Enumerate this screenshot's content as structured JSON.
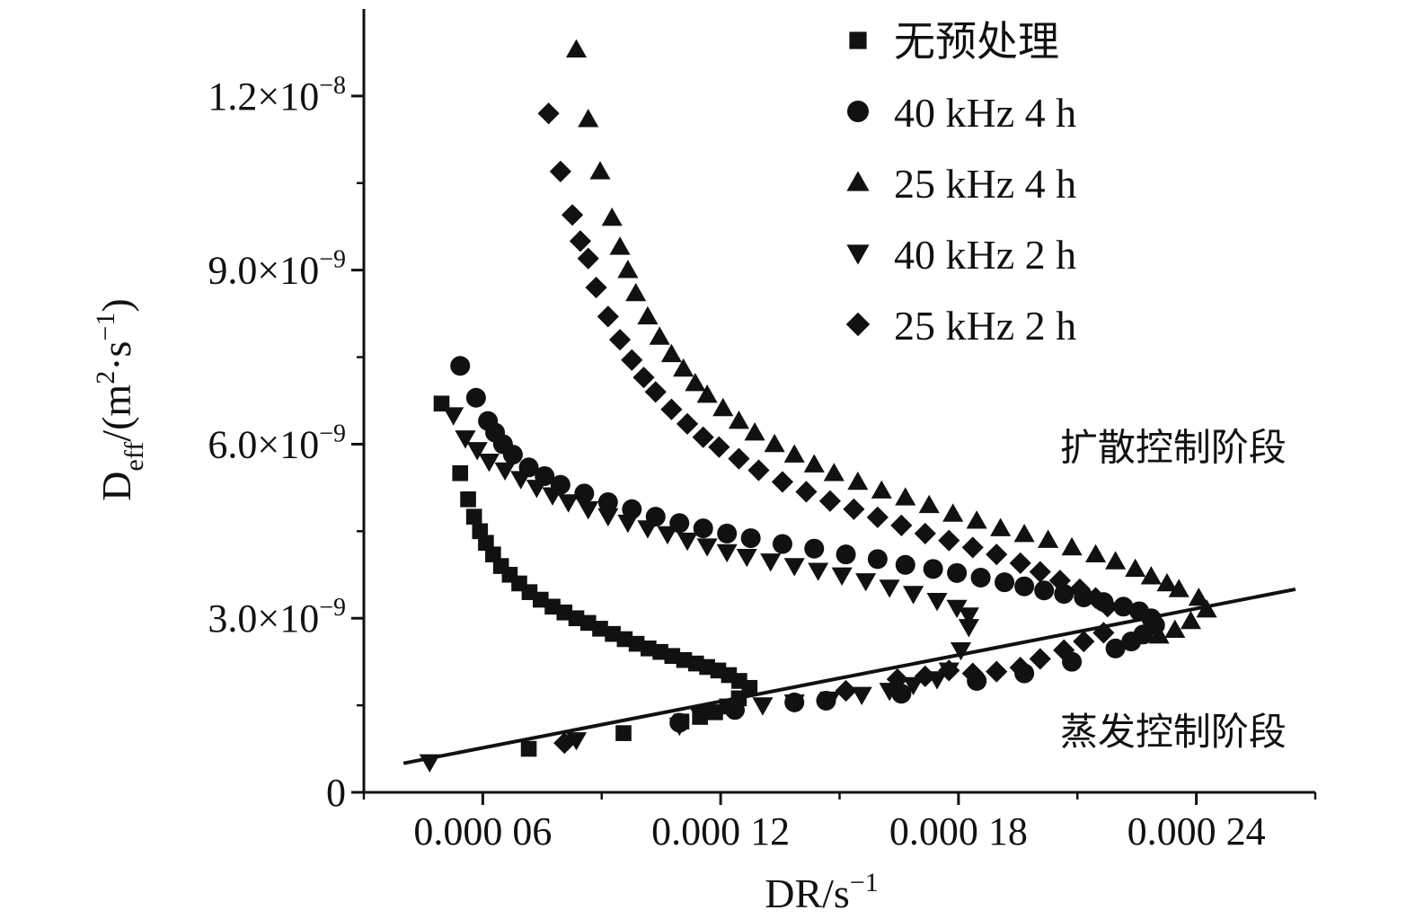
{
  "chart_data": {
    "type": "scatter",
    "xlabel": {
      "base": "DR/s",
      "sup": "−1"
    },
    "ylabel": {
      "base": "D",
      "sub": "eff",
      "mid": "/(m",
      "sup1": "2",
      "dot": "·s",
      "sup2": "−1",
      "end": ")"
    },
    "xlim": [
      3e-05,
      0.00027
    ],
    "ylim": [
      0,
      1.35e-08
    ],
    "x_ticks": [
      {
        "value": 6e-05,
        "label": "0.000 06"
      },
      {
        "value": 0.00012,
        "label": "0.000 12"
      },
      {
        "value": 0.00018,
        "label": "0.000 18"
      },
      {
        "value": 0.00024,
        "label": "0.000 24"
      }
    ],
    "x_minor_ticks": [
      3e-05,
      9e-05,
      0.00015,
      0.00021,
      0.00027
    ],
    "y_ticks": [
      {
        "value": 0,
        "label": "0"
      },
      {
        "value": 3e-09,
        "base": "3.0×10",
        "exp": "−9"
      },
      {
        "value": 6e-09,
        "base": "6.0×10",
        "exp": "−9"
      },
      {
        "value": 9e-09,
        "base": "9.0×10",
        "exp": "−9"
      },
      {
        "value": 1.2e-08,
        "base": "1.2×10",
        "exp": "−8"
      }
    ],
    "y_minor_ticks": [
      1.5e-09,
      4.5e-09,
      7.5e-09,
      1.05e-08
    ],
    "grid": false,
    "legend_position": "top-right",
    "series": [
      {
        "name": "无预处理",
        "marker": "square",
        "points": [
          [
            4.96e-05,
            6.7e-09
          ],
          [
            5.43e-05,
            5.5e-09
          ],
          [
            5.63e-05,
            5.05e-09
          ],
          [
            5.78e-05,
            4.75e-09
          ],
          [
            5.93e-05,
            4.5e-09
          ],
          [
            6.08e-05,
            4.3e-09
          ],
          [
            6.26e-05,
            4.1e-09
          ],
          [
            6.46e-05,
            3.9e-09
          ],
          [
            6.68e-05,
            3.75e-09
          ],
          [
            6.92e-05,
            3.6e-09
          ],
          [
            7.18e-05,
            3.45e-09
          ],
          [
            7.46e-05,
            3.32e-09
          ],
          [
            7.76e-05,
            3.2e-09
          ],
          [
            8.06e-05,
            3.1e-09
          ],
          [
            8.36e-05,
            3e-09
          ],
          [
            8.66e-05,
            2.92e-09
          ],
          [
            8.96e-05,
            2.82e-09
          ],
          [
            9.28e-05,
            2.73e-09
          ],
          [
            9.58e-05,
            2.64e-09
          ],
          [
            9.88e-05,
            2.56e-09
          ],
          [
            0.0001018,
            2.48e-09
          ],
          [
            0.0001048,
            2.42e-09
          ],
          [
            0.0001078,
            2.35e-09
          ],
          [
            0.0001108,
            2.28e-09
          ],
          [
            0.0001138,
            2.22e-09
          ],
          [
            0.0001166,
            2.16e-09
          ],
          [
            0.0001194,
            2.1e-09
          ],
          [
            0.0001221,
            2.02e-09
          ],
          [
            0.0001247,
            1.92e-09
          ],
          [
            0.0001273,
            1.8e-09
          ],
          [
            0.0001246,
            1.62e-09
          ],
          [
            0.0001216,
            1.48e-09
          ],
          [
            0.0001186,
            1.38e-09
          ],
          [
            0.0001148,
            1.3e-09
          ],
          [
            0.0001101,
            1.22e-09
          ],
          [
            9.55e-05,
            1.02e-09
          ],
          [
            7.16e-05,
            7.5e-10
          ]
        ]
      },
      {
        "name": "40 kHz 4 h",
        "marker": "circle",
        "points": [
          [
            5.43e-05,
            7.35e-09
          ],
          [
            5.83e-05,
            6.8e-09
          ],
          [
            6.13e-05,
            6.4e-09
          ],
          [
            6.31e-05,
            6.2e-09
          ],
          [
            6.51e-05,
            6e-09
          ],
          [
            6.76e-05,
            5.82e-09
          ],
          [
            7.16e-05,
            5.6e-09
          ],
          [
            7.56e-05,
            5.45e-09
          ],
          [
            7.96e-05,
            5.3e-09
          ],
          [
            8.56e-05,
            5.15e-09
          ],
          [
            9.16e-05,
            5e-09
          ],
          [
            9.76e-05,
            4.88e-09
          ],
          [
            0.0001036,
            4.75e-09
          ],
          [
            0.0001096,
            4.64e-09
          ],
          [
            0.0001156,
            4.55e-09
          ],
          [
            0.0001216,
            4.46e-09
          ],
          [
            0.0001276,
            4.38e-09
          ],
          [
            0.0001356,
            4.28e-09
          ],
          [
            0.0001436,
            4.2e-09
          ],
          [
            0.0001516,
            4.1e-09
          ],
          [
            0.0001596,
            4.02e-09
          ],
          [
            0.0001666,
            3.92e-09
          ],
          [
            0.0001736,
            3.85e-09
          ],
          [
            0.0001796,
            3.78e-09
          ],
          [
            0.0001856,
            3.7e-09
          ],
          [
            0.0001916,
            3.62e-09
          ],
          [
            0.0001966,
            3.55e-09
          ],
          [
            0.0002016,
            3.48e-09
          ],
          [
            0.0002066,
            3.42e-09
          ],
          [
            0.0002116,
            3.36e-09
          ],
          [
            0.0002166,
            3.28e-09
          ],
          [
            0.0002216,
            3.2e-09
          ],
          [
            0.0002256,
            3.12e-09
          ],
          [
            0.0002286,
            3e-09
          ],
          [
            0.0002296,
            2.88e-09
          ],
          [
            0.0002266,
            2.72e-09
          ],
          [
            0.0002236,
            2.6e-09
          ],
          [
            0.0002196,
            2.48e-09
          ],
          [
            0.0002086,
            2.25e-09
          ],
          [
            0.0001966,
            2.05e-09
          ],
          [
            0.0001846,
            1.92e-09
          ],
          [
            0.0001656,
            1.7e-09
          ],
          [
            0.0001466,
            1.58e-09
          ],
          [
            0.0001386,
            1.55e-09
          ],
          [
            0.0001236,
            1.42e-09
          ],
          [
            0.0001096,
            1.2e-09
          ]
        ]
      },
      {
        "name": "25 kHz 4 h",
        "marker": "triangle-up",
        "points": [
          [
            8.36e-05,
            1.28e-08
          ],
          [
            8.66e-05,
            1.16e-08
          ],
          [
            8.96e-05,
            1.07e-08
          ],
          [
            9.26e-05,
            9.9e-09
          ],
          [
            9.46e-05,
            9.4e-09
          ],
          [
            9.66e-05,
            9e-09
          ],
          [
            9.86e-05,
            8.6e-09
          ],
          [
            0.0001016,
            8.2e-09
          ],
          [
            0.0001046,
            7.85e-09
          ],
          [
            0.0001076,
            7.55e-09
          ],
          [
            0.0001106,
            7.3e-09
          ],
          [
            0.0001136,
            7.05e-09
          ],
          [
            0.0001166,
            6.85e-09
          ],
          [
            0.0001206,
            6.62e-09
          ],
          [
            0.0001246,
            6.4e-09
          ],
          [
            0.0001286,
            6.2e-09
          ],
          [
            0.0001336,
            6e-09
          ],
          [
            0.0001386,
            5.82e-09
          ],
          [
            0.0001436,
            5.65e-09
          ],
          [
            0.0001486,
            5.5e-09
          ],
          [
            0.0001546,
            5.35e-09
          ],
          [
            0.0001606,
            5.2e-09
          ],
          [
            0.0001666,
            5.08e-09
          ],
          [
            0.0001726,
            4.95e-09
          ],
          [
            0.0001786,
            4.8e-09
          ],
          [
            0.0001846,
            4.68e-09
          ],
          [
            0.0001906,
            4.55e-09
          ],
          [
            0.0001966,
            4.45e-09
          ],
          [
            0.0002026,
            4.35e-09
          ],
          [
            0.0002086,
            4.22e-09
          ],
          [
            0.0002146,
            4.1e-09
          ],
          [
            0.0002196,
            3.98e-09
          ],
          [
            0.0002246,
            3.85e-09
          ],
          [
            0.0002286,
            3.72e-09
          ],
          [
            0.0002326,
            3.6e-09
          ],
          [
            0.0002356,
            3.5e-09
          ],
          [
            0.0002406,
            3.35e-09
          ],
          [
            0.0002426,
            3.15e-09
          ],
          [
            0.0002386,
            2.95e-09
          ],
          [
            0.0002346,
            2.8e-09
          ],
          [
            0.0002306,
            2.7e-09
          ]
        ]
      },
      {
        "name": "40 kHz 2 h",
        "marker": "triangle-down",
        "points": [
          [
            5.26e-05,
            6.5e-09
          ],
          [
            5.56e-05,
            6.1e-09
          ],
          [
            5.86e-05,
            5.9e-09
          ],
          [
            6.16e-05,
            5.7e-09
          ],
          [
            6.56e-05,
            5.55e-09
          ],
          [
            6.96e-05,
            5.4e-09
          ],
          [
            7.36e-05,
            5.25e-09
          ],
          [
            7.76e-05,
            5.12e-09
          ],
          [
            8.16e-05,
            5e-09
          ],
          [
            8.66e-05,
            4.88e-09
          ],
          [
            9.16e-05,
            4.76e-09
          ],
          [
            9.66e-05,
            4.65e-09
          ],
          [
            0.0001016,
            4.55e-09
          ],
          [
            0.0001066,
            4.45e-09
          ],
          [
            0.0001116,
            4.34e-09
          ],
          [
            0.0001166,
            4.24e-09
          ],
          [
            0.0001216,
            4.14e-09
          ],
          [
            0.0001266,
            4.06e-09
          ],
          [
            0.0001326,
            3.98e-09
          ],
          [
            0.0001386,
            3.9e-09
          ],
          [
            0.0001446,
            3.82e-09
          ],
          [
            0.0001506,
            3.74e-09
          ],
          [
            0.0001566,
            3.64e-09
          ],
          [
            0.0001626,
            3.53e-09
          ],
          [
            0.0001686,
            3.42e-09
          ],
          [
            0.0001746,
            3.3e-09
          ],
          [
            0.0001796,
            3.18e-09
          ],
          [
            0.0001826,
            3.05e-09
          ],
          [
            0.0001826,
            2.85e-09
          ],
          [
            0.0001806,
            2.45e-09
          ],
          [
            0.0001776,
            2.1e-09
          ],
          [
            0.0001746,
            1.95e-09
          ],
          [
            0.0001686,
            1.85e-09
          ],
          [
            0.0001626,
            1.75e-09
          ],
          [
            0.0001556,
            1.68e-09
          ],
          [
            0.0001476,
            1.6e-09
          ],
          [
            0.0001386,
            1.55e-09
          ],
          [
            0.0001306,
            1.5e-09
          ],
          [
            0.0001226,
            1.45e-09
          ],
          [
            0.0001146,
            1.35e-09
          ],
          [
            0.0001096,
            1.15e-09
          ],
          [
            8.36e-05,
            9e-10
          ],
          [
            4.66e-05,
            5.2e-10
          ]
        ]
      },
      {
        "name": "25 kHz 2 h",
        "marker": "diamond",
        "points": [
          [
            7.66e-05,
            1.17e-08
          ],
          [
            7.96e-05,
            1.07e-08
          ],
          [
            8.26e-05,
            9.95e-09
          ],
          [
            8.46e-05,
            9.5e-09
          ],
          [
            8.66e-05,
            9.2e-09
          ],
          [
            8.86e-05,
            8.7e-09
          ],
          [
            9.16e-05,
            8.2e-09
          ],
          [
            9.46e-05,
            7.8e-09
          ],
          [
            9.76e-05,
            7.45e-09
          ],
          [
            0.0001006,
            7.15e-09
          ],
          [
            0.0001036,
            6.9e-09
          ],
          [
            0.0001076,
            6.6e-09
          ],
          [
            0.0001116,
            6.35e-09
          ],
          [
            0.0001156,
            6.12e-09
          ],
          [
            0.0001196,
            5.95e-09
          ],
          [
            0.0001246,
            5.75e-09
          ],
          [
            0.0001296,
            5.55e-09
          ],
          [
            0.0001356,
            5.35e-09
          ],
          [
            0.0001416,
            5.18e-09
          ],
          [
            0.0001476,
            5.02e-09
          ],
          [
            0.0001536,
            4.88e-09
          ],
          [
            0.0001596,
            4.74e-09
          ],
          [
            0.0001656,
            4.6e-09
          ],
          [
            0.0001716,
            4.46e-09
          ],
          [
            0.0001776,
            4.34e-09
          ],
          [
            0.0001836,
            4.22e-09
          ],
          [
            0.0001896,
            4.1e-09
          ],
          [
            0.0001956,
            3.95e-09
          ],
          [
            0.0002006,
            3.8e-09
          ],
          [
            0.0002056,
            3.65e-09
          ],
          [
            0.0002106,
            3.5e-09
          ],
          [
            0.0002146,
            3.35e-09
          ],
          [
            0.0002176,
            3.2e-09
          ],
          [
            0.0002166,
            2.75e-09
          ],
          [
            0.0002116,
            2.6e-09
          ],
          [
            0.0002066,
            2.45e-09
          ],
          [
            0.0002006,
            2.3e-09
          ],
          [
            0.0001956,
            2.15e-09
          ],
          [
            0.0001896,
            2.08e-09
          ],
          [
            0.0001836,
            2.05e-09
          ],
          [
            0.0001776,
            2.1e-09
          ],
          [
            0.0001716,
            2e-09
          ],
          [
            0.0001646,
            1.95e-09
          ],
          [
            0.0001516,
            1.75e-09
          ],
          [
            0.0001226,
            1.45e-09
          ],
          [
            8.06e-05,
            8.5e-10
          ]
        ]
      }
    ],
    "fit_line": {
      "from": [
        4e-05,
        5e-10
      ],
      "to": [
        0.000265,
        3.5e-09
      ]
    },
    "annotations": [
      {
        "text": "扩散控制阶段",
        "at": [
          0.000265,
          5.95e-09
        ]
      },
      {
        "text": "蒸发控制阶段",
        "at": [
          0.000265,
          1.05e-09
        ]
      }
    ]
  }
}
